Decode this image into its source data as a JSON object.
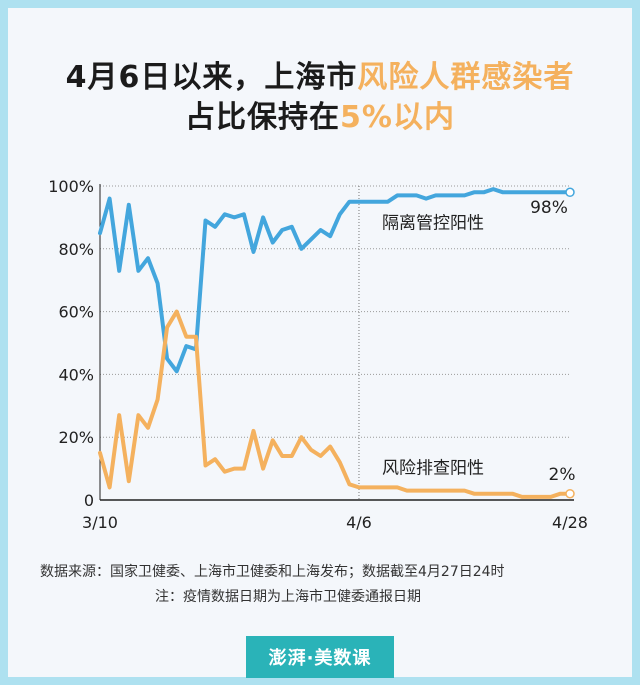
{
  "title": {
    "line1_part1": "4月6日以来，上海市",
    "line1_highlight": "风险人群感染者",
    "line2_part1": "占比保持在",
    "line2_highlight": "5%以内",
    "highlight_color": "#f4b15e"
  },
  "chart_data": {
    "type": "line",
    "x": [
      "3/10",
      "3/11",
      "3/12",
      "3/13",
      "3/14",
      "3/15",
      "3/16",
      "3/17",
      "3/18",
      "3/19",
      "3/20",
      "3/21",
      "3/22",
      "3/23",
      "3/24",
      "3/25",
      "3/26",
      "3/27",
      "3/28",
      "3/29",
      "3/30",
      "3/31",
      "4/1",
      "4/2",
      "4/3",
      "4/4",
      "4/5",
      "4/6",
      "4/7",
      "4/8",
      "4/9",
      "4/10",
      "4/11",
      "4/12",
      "4/13",
      "4/14",
      "4/15",
      "4/16",
      "4/17",
      "4/18",
      "4/19",
      "4/20",
      "4/21",
      "4/22",
      "4/23",
      "4/24",
      "4/25",
      "4/26",
      "4/27",
      "4/28"
    ],
    "x_tick_labels": [
      "3/10",
      "4/6",
      "4/28"
    ],
    "y_tick_labels": [
      "0",
      "20%",
      "40%",
      "60%",
      "80%",
      "100%"
    ],
    "ylim": [
      0,
      100
    ],
    "grid": true,
    "series": [
      {
        "name": "隔离管控阳性",
        "color": "#43a6dd",
        "end_label": "98%",
        "values": [
          85,
          96,
          73,
          94,
          73,
          77,
          69,
          45,
          41,
          49,
          48,
          89,
          87,
          91,
          90,
          91,
          79,
          90,
          82,
          86,
          87,
          80,
          83,
          86,
          84,
          91,
          95,
          95,
          95,
          95,
          95,
          97,
          97,
          97,
          96,
          97,
          97,
          97,
          97,
          98,
          98,
          99,
          98,
          98,
          98,
          98,
          98,
          98,
          98,
          98
        ]
      },
      {
        "name": "风险排查阳性",
        "color": "#f4b15e",
        "end_label": "2%",
        "values": [
          15,
          4,
          27,
          6,
          27,
          23,
          32,
          55,
          60,
          52,
          52,
          11,
          13,
          9,
          10,
          10,
          22,
          10,
          19,
          14,
          14,
          20,
          16,
          14,
          17,
          12,
          5,
          4,
          4,
          4,
          4,
          4,
          3,
          3,
          3,
          3,
          3,
          3,
          3,
          2,
          2,
          2,
          2,
          2,
          1,
          1,
          1,
          1,
          2,
          2
        ]
      }
    ],
    "vline_at": "4/6"
  },
  "notes": {
    "source": "数据来源：国家卫健委、上海市卫健委和上海发布；数据截至4月27日24时",
    "remark": "注：疫情数据日期为上海市卫健委通报日期"
  },
  "logo": {
    "text": "澎湃·美数课"
  }
}
